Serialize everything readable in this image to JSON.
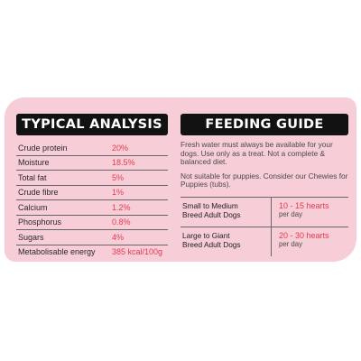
{
  "analysis": {
    "title": "TYPICAL ANALYSIS",
    "rows": [
      {
        "name": "Crude protein",
        "value": "20%"
      },
      {
        "name": "Moisture",
        "value": "18.5%"
      },
      {
        "name": "Total fat",
        "value": "5%"
      },
      {
        "name": "Crude fibre",
        "value": "1%"
      },
      {
        "name": "Calcium",
        "value": "1.2%"
      },
      {
        "name": "Phosphorus",
        "value": "0.8%"
      },
      {
        "name": "Sugars",
        "value": "4%"
      },
      {
        "name": "Metabolisable energy",
        "value": "385 kcal/100g"
      }
    ]
  },
  "feeding": {
    "title": "FEEDING GUIDE",
    "paragraph1": "Fresh water must always be available for your dogs. Use only as a treat. Not a complete & balanced diet.",
    "paragraph2": "Not suitable for puppies. Consider our Chewies for Puppies (tubs).",
    "rows": [
      {
        "breed_line1": "Small to Medium",
        "breed_line2": "Breed Adult Dogs",
        "hearts": "10 - 15 hearts",
        "per": "per day"
      },
      {
        "breed_line1": "Large to Giant",
        "breed_line2": "Breed Adult Dogs",
        "hearts": "20 - 30 hearts",
        "per": "per day"
      }
    ]
  },
  "colors": {
    "card": "#f7cdd7",
    "heading": "#121212",
    "accent": "#e43c4f"
  }
}
